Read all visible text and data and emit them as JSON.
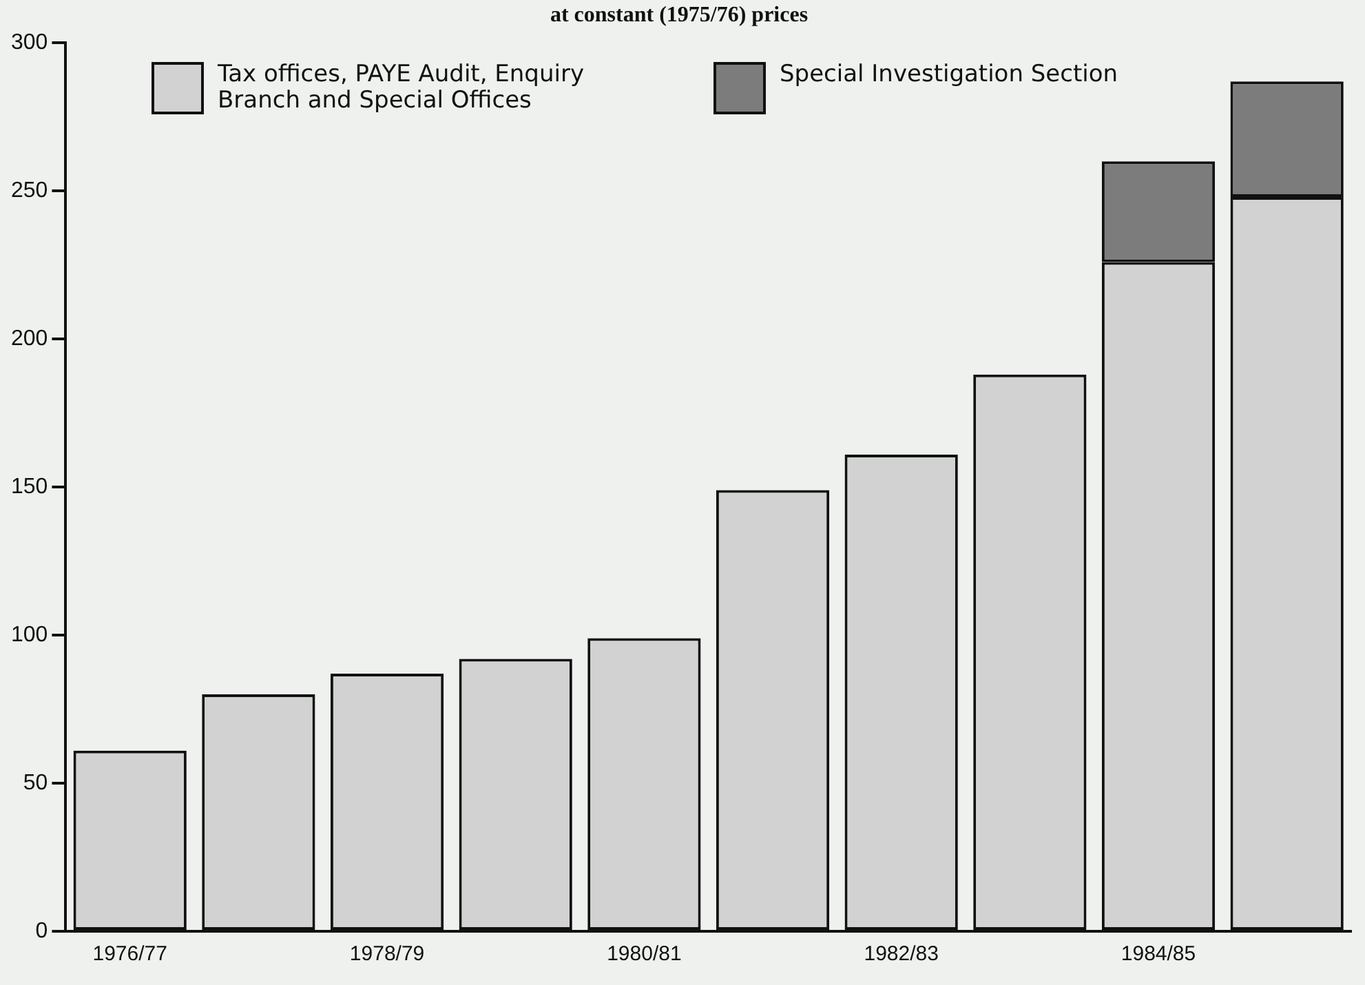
{
  "chart_data": {
    "type": "bar",
    "title": "at constant (1975/76) prices",
    "stacked": true,
    "categories": [
      "1976/77",
      null,
      "1978/79",
      null,
      "1980/81",
      null,
      "1982/83",
      null,
      "1984/85",
      null
    ],
    "series": [
      {
        "name": "Tax offices, PAYE Audit, Enquiry Branch and Special Offices",
        "color": "#d2d2d2",
        "values": [
          61,
          80,
          87,
          92,
          99,
          149,
          161,
          188,
          226,
          248
        ]
      },
      {
        "name": "Special Investigation Section",
        "color": "#7c7c7c",
        "values": [
          null,
          null,
          null,
          null,
          null,
          null,
          null,
          null,
          34,
          39
        ]
      }
    ],
    "ylim": [
      0,
      300
    ],
    "yticks": [
      0,
      50,
      100,
      150,
      200,
      250,
      300
    ],
    "grid": false,
    "legend": "top left"
  }
}
